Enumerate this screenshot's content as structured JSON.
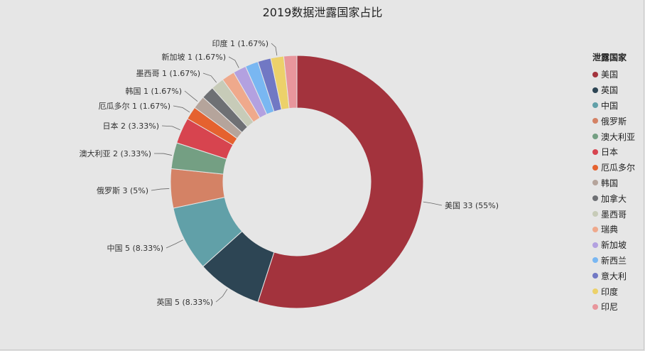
{
  "chart_data": {
    "type": "pie",
    "title": "2019数据泄露国家占比",
    "legend_title": "泄露国家",
    "legend_position": "right",
    "hole": "donut",
    "slices": [
      {
        "name": "美国",
        "value": 33,
        "percent": "55%",
        "color": "#a3333d",
        "label": "美国 33 (55%)"
      },
      {
        "name": "英国",
        "value": 5,
        "percent": "8.33%",
        "color": "#2d4554",
        "label": "英国 5 (8.33%)"
      },
      {
        "name": "中国",
        "value": 5,
        "percent": "8.33%",
        "color": "#61a0a8",
        "label": "中国 5 (8.33%)"
      },
      {
        "name": "俄罗斯",
        "value": 3,
        "percent": "5%",
        "color": "#d48265",
        "label": "俄罗斯 3 (5%)"
      },
      {
        "name": "澳大利亚",
        "value": 2,
        "percent": "3.33%",
        "color": "#749f83",
        "label": "澳大利亚 2 (3.33%)"
      },
      {
        "name": "日本",
        "value": 2,
        "percent": "3.33%",
        "color": "#d7444f",
        "label": "日本 2 (3.33%)"
      },
      {
        "name": "厄瓜多尔",
        "value": 1,
        "percent": "1.67%",
        "color": "#e5622f",
        "label": "厄瓜多尔 1 (1.67%)"
      },
      {
        "name": "韩国",
        "value": 1,
        "percent": "1.67%",
        "color": "#b5a49b",
        "label": "韩国 1 (1.67%)"
      },
      {
        "name": "加拿大",
        "value": 1,
        "percent": "1.67%",
        "color": "#6e7074",
        "label": ""
      },
      {
        "name": "墨西哥",
        "value": 1,
        "percent": "1.67%",
        "color": "#c7cbb8",
        "label": "墨西哥 1 (1.67%)"
      },
      {
        "name": "瑞典",
        "value": 1,
        "percent": "1.67%",
        "color": "#efa98c",
        "label": ""
      },
      {
        "name": "新加坡",
        "value": 1,
        "percent": "1.67%",
        "color": "#b3a1e0",
        "label": "新加坡 1 (1.67%)"
      },
      {
        "name": "新西兰",
        "value": 1,
        "percent": "1.67%",
        "color": "#79b7f2",
        "label": ""
      },
      {
        "name": "意大利",
        "value": 1,
        "percent": "1.67%",
        "color": "#7178c4",
        "label": ""
      },
      {
        "name": "印度",
        "value": 1,
        "percent": "1.67%",
        "color": "#ecd16a",
        "label": "印度 1 (1.67%)"
      },
      {
        "name": "印尼",
        "value": 1,
        "percent": "1.67%",
        "color": "#e8969c",
        "label": ""
      }
    ]
  }
}
